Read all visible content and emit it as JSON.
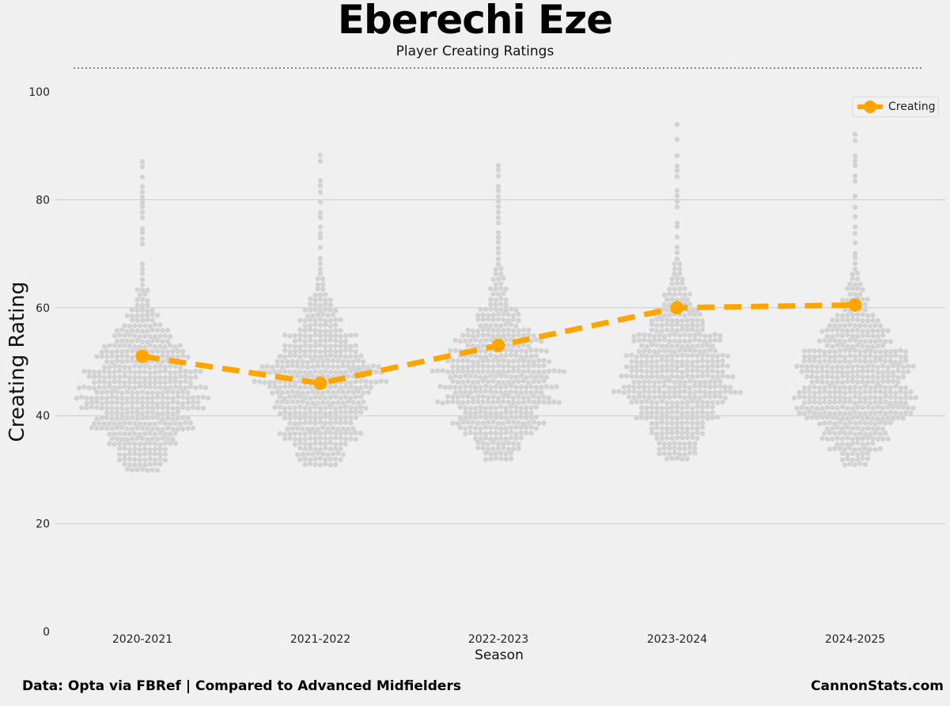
{
  "title": "Eberechi Eze",
  "subtitle": "Player Creating Ratings",
  "footer": {
    "left": "Data: Opta via FBRef | Compared to Advanced Midfielders",
    "right": "CannonStats.com"
  },
  "chart_data": {
    "type": "line",
    "xlabel": "Season",
    "ylabel": "Creating Rating",
    "ylim": [
      0,
      100
    ],
    "yticks": [
      0,
      20,
      40,
      60,
      80,
      100
    ],
    "categories": [
      "2020-2021",
      "2021-2022",
      "2022-2023",
      "2023-2024",
      "2024-2025"
    ],
    "grid": true,
    "legend_position": "top-right",
    "series": [
      {
        "name": "Creating",
        "color": "#FFA500",
        "style": "dashed",
        "marker": "circle",
        "values": [
          51,
          46,
          53,
          60,
          60.5
        ]
      }
    ],
    "background_distribution": {
      "color": "#d3d3d3",
      "per_season": [
        {
          "min": 30,
          "max": 90,
          "median": 44
        },
        {
          "min": 31,
          "max": 91,
          "median": 45
        },
        {
          "min": 32,
          "max": 87,
          "median": 46
        },
        {
          "min": 32,
          "max": 95,
          "median": 47
        },
        {
          "min": 31,
          "max": 92,
          "median": 46
        }
      ]
    }
  }
}
